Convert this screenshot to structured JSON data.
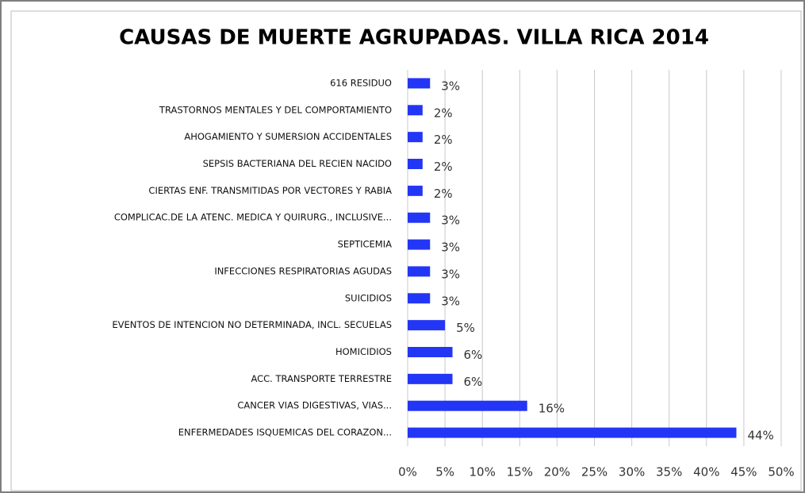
{
  "chart_data": {
    "type": "bar",
    "orientation": "horizontal",
    "title": "CAUSAS DE MUERTE AGRUPADAS. VILLA RICA 2014",
    "categories": [
      "616 RESIDUO",
      "TRASTORNOS MENTALES Y DEL COMPORTAMIENTO",
      "AHOGAMIENTO Y SUMERSION ACCIDENTALES",
      "SEPSIS BACTERIANA DEL RECIEN NACIDO",
      "CIERTAS ENF. TRANSMITIDAS POR VECTORES Y RABIA",
      "COMPLICAC.DE LA ATENC. MEDICA Y QUIRURG., INCLUSIVE...",
      "SEPTICEMIA",
      "INFECCIONES RESPIRATORIAS AGUDAS",
      "SUICIDIOS",
      "EVENTOS DE INTENCION NO DETERMINADA, INCL. SECUELAS",
      "HOMICIDIOS",
      "ACC. TRANSPORTE TERRESTRE",
      "CANCER VIAS DIGESTIVAS, VIAS...",
      "ENFERMEDADES ISQUEMICAS DEL CORAZON..."
    ],
    "values": [
      3,
      2,
      2,
      2,
      2,
      3,
      3,
      3,
      3,
      5,
      6,
      6,
      16,
      44
    ],
    "value_labels": [
      "3%",
      "2%",
      "2%",
      "2%",
      "2%",
      "3%",
      "3%",
      "3%",
      "3%",
      "5%",
      "6%",
      "6%",
      "16%",
      "44%"
    ],
    "color": "#2336f5",
    "xlim": [
      0,
      50
    ],
    "xticks": [
      {
        "value": 0,
        "label": "0%"
      },
      {
        "value": 5,
        "label": "5%"
      },
      {
        "value": 10,
        "label": "10%"
      },
      {
        "value": 15,
        "label": "15%"
      },
      {
        "value": 20,
        "label": "20%"
      },
      {
        "value": 25,
        "label": "25%"
      },
      {
        "value": 30,
        "label": "30%"
      },
      {
        "value": 35,
        "label": "35%"
      },
      {
        "value": 40,
        "label": "40%"
      },
      {
        "value": 45,
        "label": "45%"
      },
      {
        "value": 50,
        "label": "50%"
      }
    ],
    "grid": true
  }
}
